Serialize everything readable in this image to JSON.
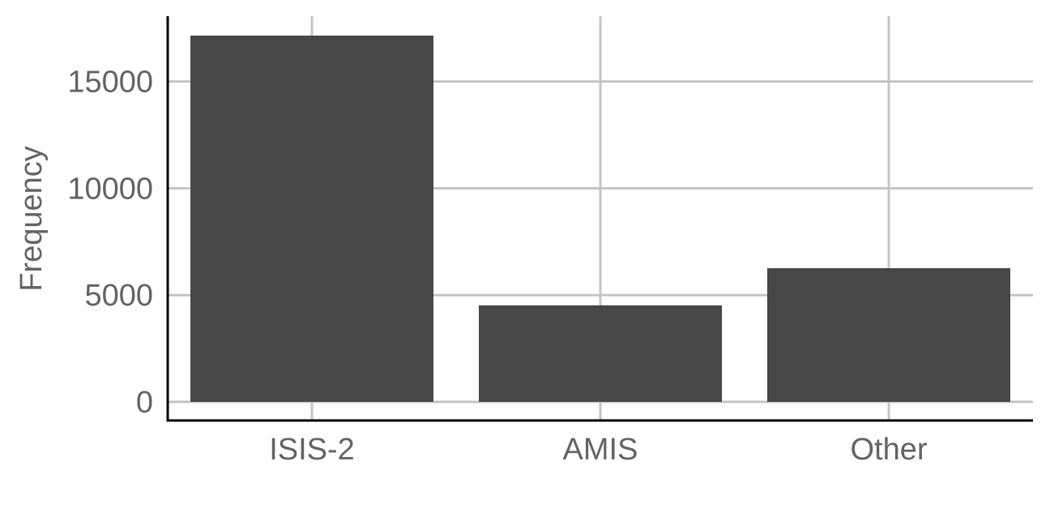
{
  "chart_data": {
    "type": "bar",
    "categories": [
      "ISIS-2",
      "AMIS",
      "Other"
    ],
    "values": [
      17150,
      4520,
      6260
    ],
    "title": "",
    "xlabel": "",
    "ylabel": "Frequency",
    "ylim": [
      0,
      17800
    ],
    "yticks": [
      0,
      5000,
      10000,
      15000
    ],
    "ytick_labels": [
      "0",
      "5000",
      "10000",
      "15000"
    ],
    "grid": true,
    "legend": "none",
    "colors": {
      "bar": "#474747",
      "grid": "#c4c4c4",
      "axis": "#000000",
      "text": "#636363"
    }
  }
}
